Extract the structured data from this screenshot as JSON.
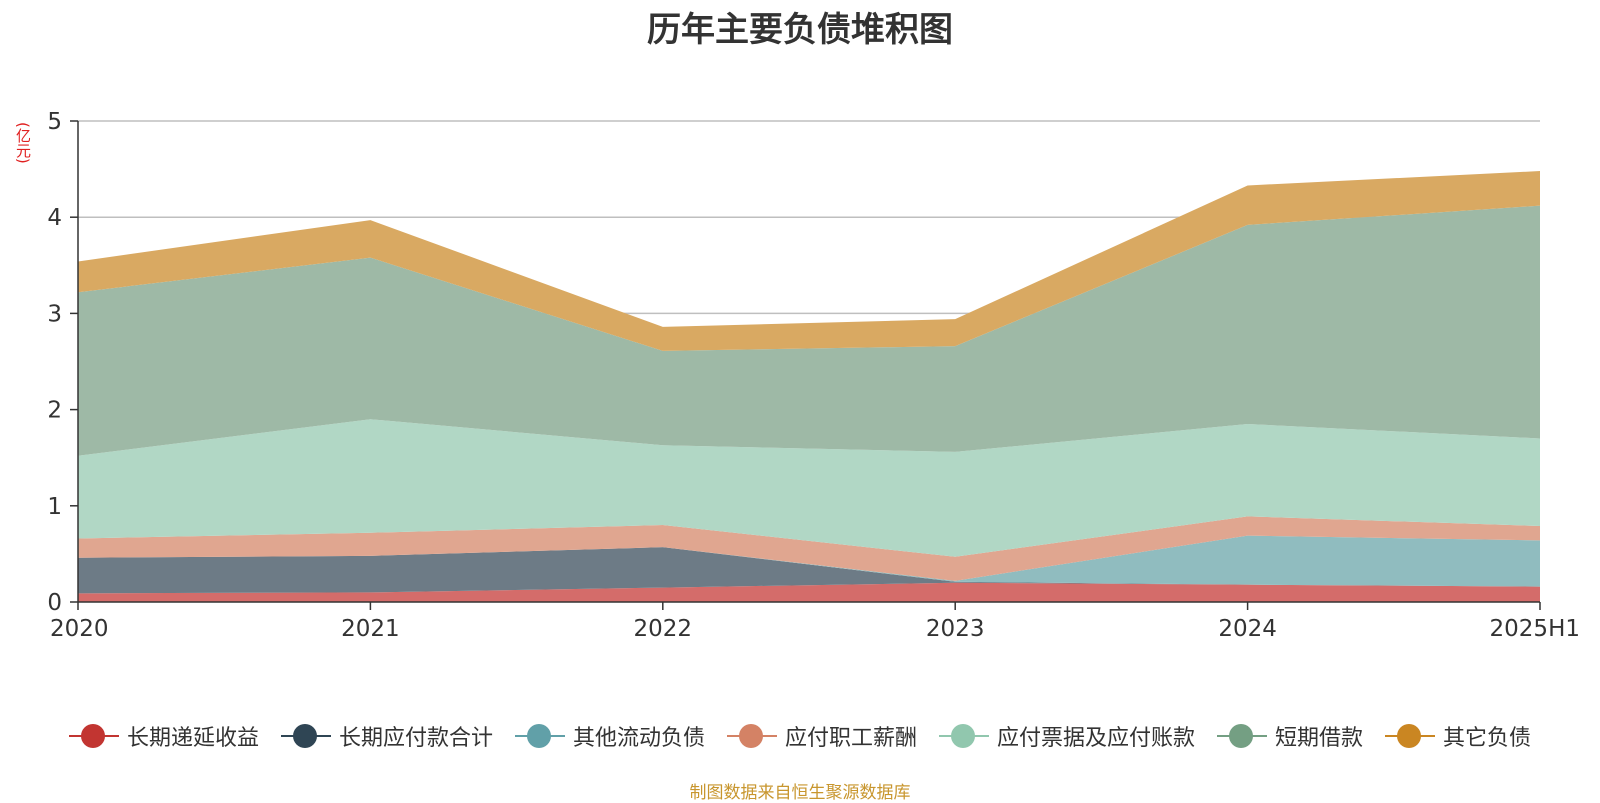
{
  "chart_data": {
    "type": "area",
    "stacked": true,
    "title": "历年主要负债堆积图",
    "ylabel": "(亿元)",
    "categories": [
      "2020",
      "2021",
      "2022",
      "2023",
      "2024",
      "2025H1"
    ],
    "ylim": [
      0,
      5
    ],
    "yticks": [
      0,
      1,
      2,
      3,
      4,
      5
    ],
    "grid": true,
    "legend_position": "bottom",
    "series": [
      {
        "name": "长期递延收益",
        "color": "#c23531",
        "area_color": "#d46c6a",
        "values": [
          0.09,
          0.1,
          0.15,
          0.2,
          0.18,
          0.16
        ]
      },
      {
        "name": "长期应付款合计",
        "color": "#2f4554",
        "area_color": "#6d7b86",
        "values": [
          0.37,
          0.38,
          0.42,
          0.01,
          0.0,
          0.0
        ]
      },
      {
        "name": "其他流动负债",
        "color": "#61a0a8",
        "area_color": "#90bcbf",
        "values": [
          0.0,
          0.0,
          0.0,
          0.01,
          0.51,
          0.48
        ]
      },
      {
        "name": "应付职工薪酬",
        "color": "#d48265",
        "area_color": "#e0a690",
        "values": [
          0.2,
          0.24,
          0.23,
          0.25,
          0.2,
          0.15
        ]
      },
      {
        "name": "应付票据及应付账款",
        "color": "#91c7ae",
        "area_color": "#b1d7c5",
        "values": [
          0.86,
          1.18,
          0.83,
          1.09,
          0.96,
          0.91
        ]
      },
      {
        "name": "短期借款",
        "color": "#749f83",
        "area_color": "#9eb9a6",
        "values": [
          1.7,
          1.68,
          0.98,
          1.1,
          2.07,
          2.42
        ]
      },
      {
        "name": "其它负债",
        "color": "#ca8622",
        "area_color": "#d9a962",
        "values": [
          0.32,
          0.39,
          0.25,
          0.28,
          0.41,
          0.36
        ]
      }
    ]
  },
  "source_note": "制图数据来自恒生聚源数据库"
}
